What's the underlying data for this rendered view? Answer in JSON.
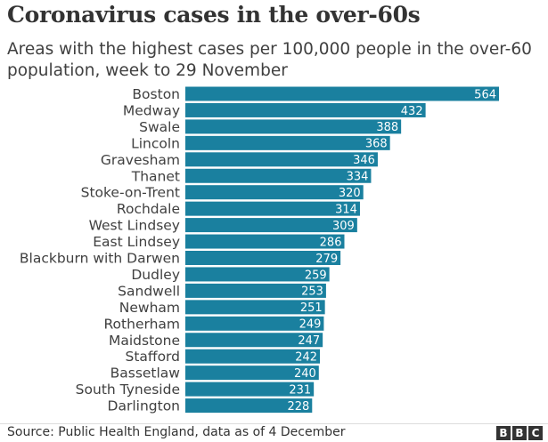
{
  "header": {
    "title": "Coronavirus cases in the over-60s",
    "subtitle": "Areas with the highest cases per 100,000 people in the over-60 population, week to 29 November"
  },
  "chart_data": {
    "type": "bar",
    "orientation": "horizontal",
    "categories": [
      "Boston",
      "Medway",
      "Swale",
      "Lincoln",
      "Gravesham",
      "Thanet",
      "Stoke-on-Trent",
      "Rochdale",
      "West Lindsey",
      "East Lindsey",
      "Blackburn with Darwen",
      "Dudley",
      "Sandwell",
      "Newham",
      "Rotherham",
      "Maidstone",
      "Stafford",
      "Bassetlaw",
      "South Tyneside",
      "Darlington"
    ],
    "values": [
      564,
      432,
      388,
      368,
      346,
      334,
      320,
      314,
      309,
      286,
      279,
      259,
      253,
      251,
      249,
      247,
      242,
      240,
      231,
      228
    ],
    "value_labels": [
      "564",
      "432",
      "388",
      "368",
      "346",
      "334",
      "320",
      "314",
      "309",
      "286",
      "279",
      "259",
      "253",
      "251",
      "249",
      "247",
      "242",
      "240",
      "231",
      "228"
    ],
    "bar_color": "#1a809f",
    "xlim": [
      0,
      564
    ],
    "grid": false,
    "legend": "none"
  },
  "footer": {
    "source": "Source: Public Health England, data as of 4 December",
    "logo_letters": [
      "B",
      "B",
      "C"
    ]
  }
}
